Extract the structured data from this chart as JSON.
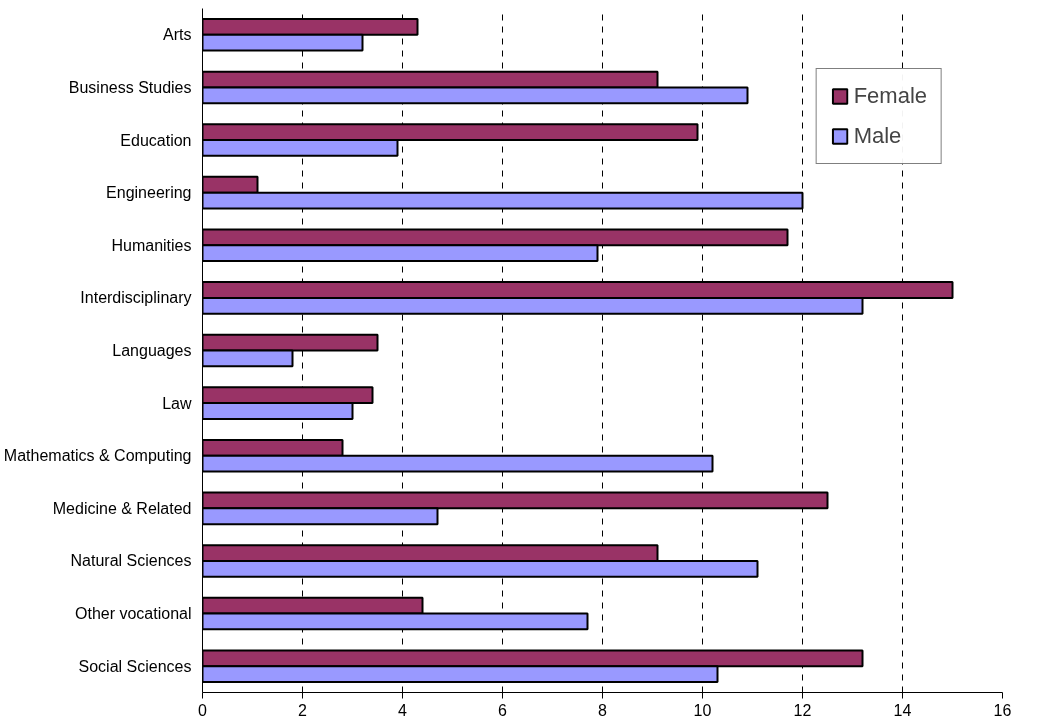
{
  "chart_data": {
    "type": "bar",
    "orientation": "horizontal",
    "categories": [
      "Arts",
      "Business Studies",
      "Education",
      "Engineering",
      "Humanities",
      "Interdisciplinary",
      "Languages",
      "Law",
      "Mathematics & Computing",
      "Medicine & Related",
      "Natural Sciences",
      "Other vocational",
      "Social Sciences"
    ],
    "series": [
      {
        "name": "Female",
        "color": "#993366",
        "values": [
          4.3,
          9.1,
          9.9,
          1.1,
          11.7,
          15.0,
          3.5,
          3.4,
          2.8,
          12.5,
          9.1,
          4.4,
          13.2
        ]
      },
      {
        "name": "Male",
        "color": "#9999ff",
        "values": [
          3.2,
          10.9,
          3.9,
          12.0,
          7.9,
          13.2,
          1.8,
          3.0,
          10.2,
          4.7,
          11.1,
          7.7,
          10.3
        ]
      }
    ],
    "xlim": [
      0,
      16
    ],
    "xticks": [
      0,
      2,
      4,
      6,
      8,
      10,
      12,
      14,
      16
    ],
    "grid": "x",
    "legend": "top right"
  }
}
